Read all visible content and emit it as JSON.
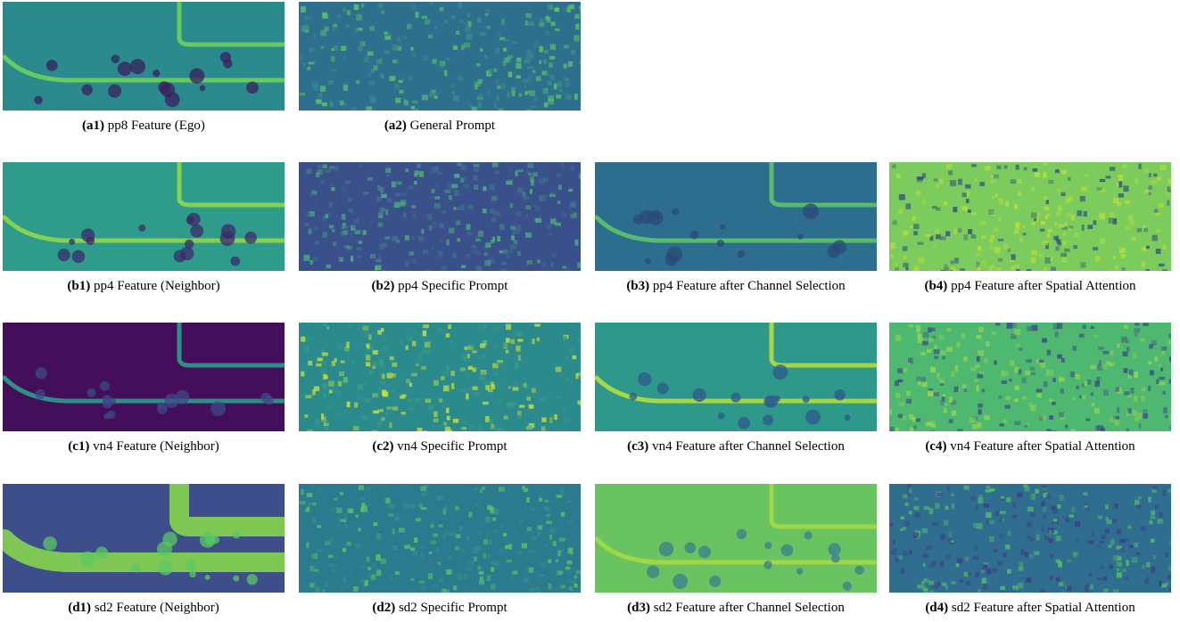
{
  "rows": [
    {
      "panels": [
        {
          "label": "(a1)",
          "caption": "pp8 Feature (Ego)"
        },
        {
          "label": "(a2)",
          "caption": "General Prompt"
        }
      ]
    },
    {
      "panels": [
        {
          "label": "(b1)",
          "caption": "pp4 Feature (Neighbor)"
        },
        {
          "label": "(b2)",
          "caption": "pp4 Specific Prompt"
        },
        {
          "label": "(b3)",
          "caption": "pp4 Feature after Channel Selection"
        },
        {
          "label": "(b4)",
          "caption": "pp4 Feature after Spatial Attention"
        }
      ]
    },
    {
      "panels": [
        {
          "label": "(c1)",
          "caption": "vn4 Feature (Neighbor)"
        },
        {
          "label": "(c2)",
          "caption": "vn4 Specific Prompt"
        },
        {
          "label": "(c3)",
          "caption": "vn4 Feature after Channel Selection"
        },
        {
          "label": "(c4)",
          "caption": "vn4 Feature after Spatial Attention"
        }
      ]
    },
    {
      "panels": [
        {
          "label": "(d1)",
          "caption": "sd2 Feature (Neighbor)"
        },
        {
          "label": "(d2)",
          "caption": "sd2 Specific Prompt"
        },
        {
          "label": "(d3)",
          "caption": "sd2 Feature after Channel Selection"
        },
        {
          "label": "(d4)",
          "caption": "sd2 Feature after Spatial Attention"
        }
      ]
    }
  ]
}
